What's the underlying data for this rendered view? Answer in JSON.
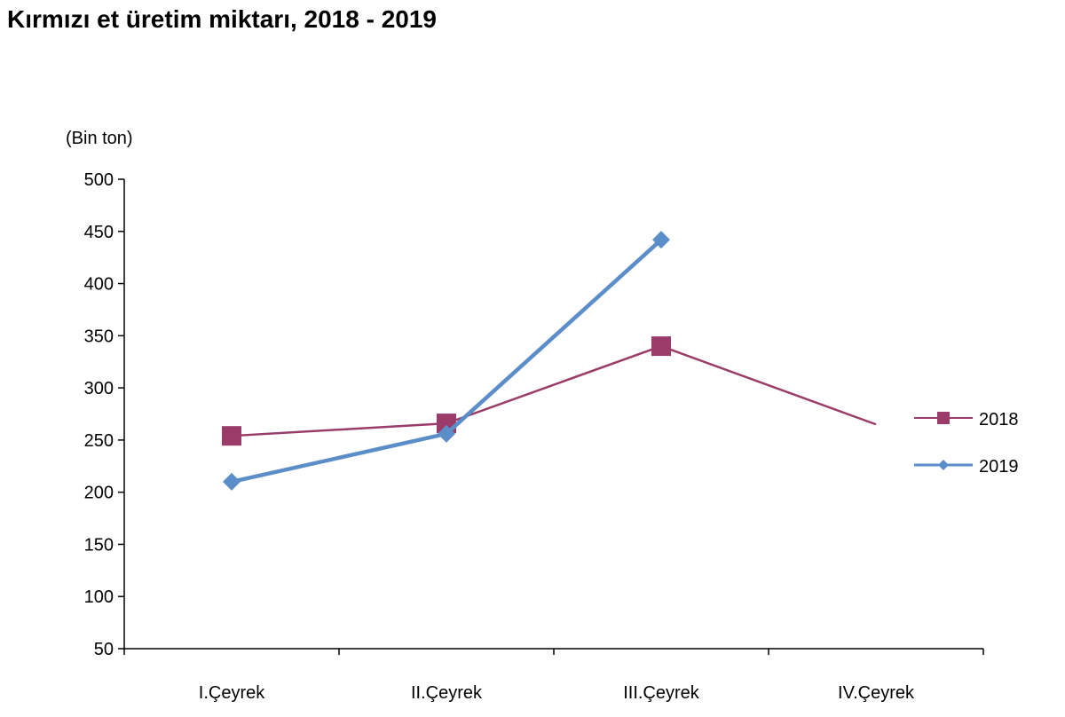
{
  "chart_data": {
    "type": "line",
    "title": "Kırmızı et üretim miktarı, 2018 - 2019",
    "ylabel": "(Bin ton)",
    "xlabel": "",
    "categories": [
      "I.Çeyrek",
      "II.Çeyrek",
      "III.Çeyrek",
      "IV.Çeyrek"
    ],
    "ylim": [
      50,
      500
    ],
    "yticks": [
      "500",
      "450",
      "400",
      "350",
      "300",
      "250",
      "200",
      "150",
      "100",
      "50"
    ],
    "grid": false,
    "legend_position": "right",
    "series": [
      {
        "name": "2018",
        "values": [
          254,
          266,
          340,
          265
        ],
        "color": "#9B3B6A",
        "marker": "square"
      },
      {
        "name": "2019",
        "values": [
          210,
          256,
          442,
          null
        ],
        "color": "#5B8EC9",
        "marker": "diamond"
      }
    ]
  }
}
